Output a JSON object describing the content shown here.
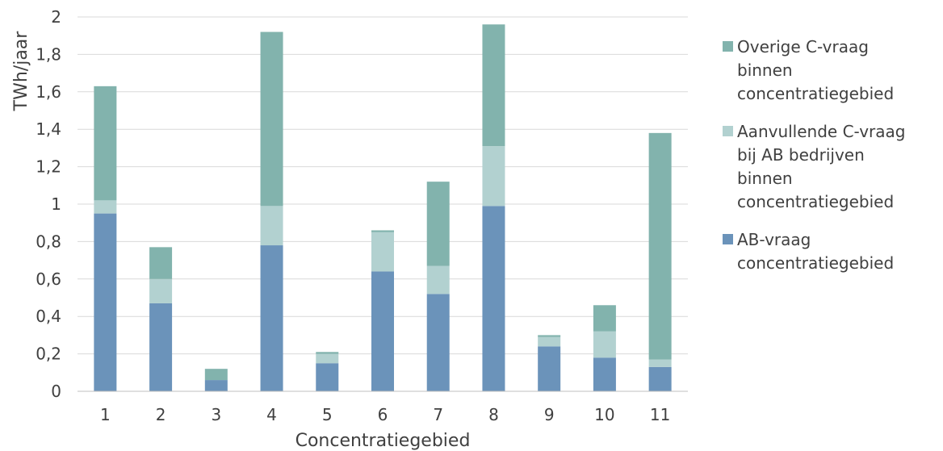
{
  "chart_data": {
    "type": "bar",
    "stacked": true,
    "xlabel": "Concentratiegebied",
    "ylabel": "TWh/jaar",
    "ylim": [
      0,
      2
    ],
    "yticks": [
      "0",
      "0,2",
      "0,4",
      "0,6",
      "0,8",
      "1",
      "1,2",
      "1,4",
      "1,6",
      "1,8",
      "2"
    ],
    "categories": [
      "1",
      "2",
      "3",
      "4",
      "5",
      "6",
      "7",
      "8",
      "9",
      "10",
      "11"
    ],
    "grid": true,
    "legend_position": "right",
    "series": [
      {
        "name": "AB-vraag\nconcentratiegebied",
        "color": "#6b93ba",
        "values": [
          0.95,
          0.47,
          0.06,
          0.78,
          0.15,
          0.64,
          0.52,
          0.99,
          0.24,
          0.18,
          0.13
        ]
      },
      {
        "name": "Aanvullende C-vraag\nbij AB bedrijven\nbinnen\nconcentratiegebied",
        "color": "#b2d1d0",
        "values": [
          0.07,
          0.13,
          0.0,
          0.21,
          0.05,
          0.21,
          0.15,
          0.32,
          0.05,
          0.14,
          0.04
        ]
      },
      {
        "name": "Overige C-vraag\nbinnen\nconcentratiegebied",
        "color": "#82b3ad",
        "values": [
          0.61,
          0.17,
          0.06,
          0.93,
          0.01,
          0.01,
          0.45,
          0.65,
          0.01,
          0.14,
          1.21
        ]
      }
    ]
  }
}
